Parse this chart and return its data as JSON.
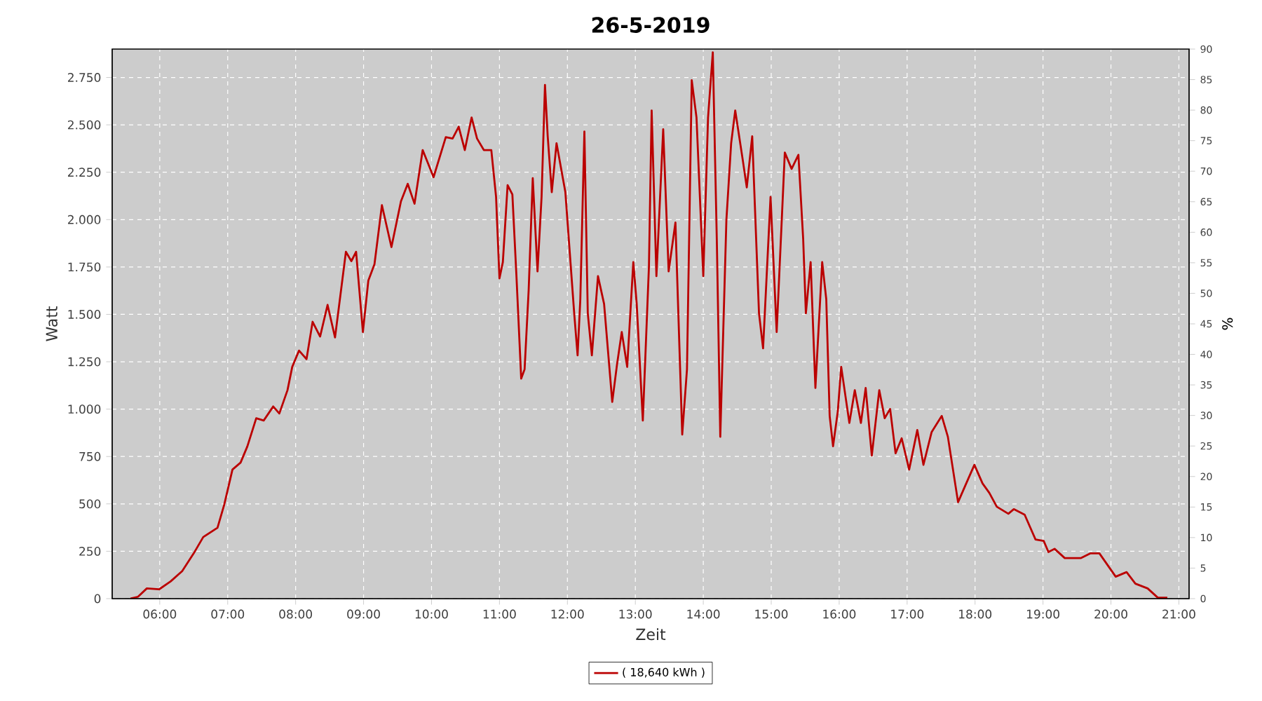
{
  "chart_data": {
    "type": "line",
    "title": "26-5-2019",
    "xlabel": "Zeit",
    "ylabel": "Watt",
    "y2label": "%",
    "xlim": [
      5.3,
      21.15
    ],
    "ylim": [
      0,
      2900
    ],
    "y2lim": [
      0,
      90
    ],
    "xticks": [
      {
        "value": 6,
        "label": "06:00"
      },
      {
        "value": 7,
        "label": "07:00"
      },
      {
        "value": 8,
        "label": "08:00"
      },
      {
        "value": 9,
        "label": "09:00"
      },
      {
        "value": 10,
        "label": "10:00"
      },
      {
        "value": 11,
        "label": "11:00"
      },
      {
        "value": 12,
        "label": "12:00"
      },
      {
        "value": 13,
        "label": "13:00"
      },
      {
        "value": 14,
        "label": "14:00"
      },
      {
        "value": 15,
        "label": "15:00"
      },
      {
        "value": 16,
        "label": "16:00"
      },
      {
        "value": 17,
        "label": "17:00"
      },
      {
        "value": 18,
        "label": "18:00"
      },
      {
        "value": 19,
        "label": "19:00"
      },
      {
        "value": 20,
        "label": "20:00"
      },
      {
        "value": 21,
        "label": "21:00"
      }
    ],
    "yticks": [
      0,
      {
        "value": 250,
        "label": "250"
      },
      {
        "value": 500,
        "label": "500"
      },
      {
        "value": 750,
        "label": "750"
      },
      {
        "value": 1000,
        "label": "1.000"
      },
      {
        "value": 1250,
        "label": "1.250"
      },
      {
        "value": 1500,
        "label": "1.500"
      },
      {
        "value": 1750,
        "label": "1.750"
      },
      {
        "value": 2000,
        "label": "2.000"
      },
      {
        "value": 2250,
        "label": "2.250"
      },
      {
        "value": 2500,
        "label": "2.500"
      },
      {
        "value": 2750,
        "label": "2.750"
      }
    ],
    "y2ticks": [
      0,
      5,
      10,
      15,
      20,
      25,
      30,
      35,
      40,
      45,
      50,
      55,
      60,
      65,
      70,
      75,
      80,
      85,
      90
    ],
    "grid": true,
    "legend": "bottom",
    "series": [
      {
        "name": "( 18,640 kWh )",
        "color": "#bb0000",
        "x": [
          5.57,
          5.68,
          5.81,
          5.99,
          6.16,
          6.33,
          6.5,
          6.64,
          6.85,
          6.95,
          7.07,
          7.19,
          7.29,
          7.42,
          7.53,
          7.67,
          7.76,
          7.88,
          7.95,
          8.05,
          8.16,
          8.25,
          8.36,
          8.47,
          8.58,
          8.74,
          8.82,
          8.89,
          8.99,
          9.07,
          9.16,
          9.27,
          9.41,
          9.55,
          9.65,
          9.75,
          9.87,
          10.03,
          10.21,
          10.31,
          10.4,
          10.49,
          10.59,
          10.67,
          10.77,
          10.88,
          10.95,
          11.0,
          11.05,
          11.12,
          11.19,
          11.25,
          11.32,
          11.37,
          11.43,
          11.49,
          11.56,
          11.62,
          11.67,
          11.71,
          11.77,
          11.84,
          11.97,
          12.1,
          12.15,
          12.19,
          12.25,
          12.3,
          12.36,
          12.45,
          12.54,
          12.66,
          12.73,
          12.8,
          12.88,
          12.97,
          13.02,
          13.11,
          13.2,
          13.24,
          13.31,
          13.41,
          13.49,
          13.59,
          13.69,
          13.76,
          13.83,
          13.9,
          14.0,
          14.07,
          14.14,
          14.2,
          14.25,
          14.34,
          14.41,
          14.47,
          14.58,
          14.64,
          14.72,
          14.82,
          14.88,
          14.99,
          15.08,
          15.2,
          15.3,
          15.4,
          15.47,
          15.51,
          15.58,
          15.65,
          15.75,
          15.81,
          15.86,
          15.91,
          15.98,
          16.03,
          16.1,
          16.15,
          16.23,
          16.32,
          16.39,
          16.48,
          16.59,
          16.67,
          16.75,
          16.83,
          16.92,
          17.03,
          17.15,
          17.24,
          17.36,
          17.51,
          17.6,
          17.75,
          17.87,
          17.99,
          18.11,
          18.21,
          18.32,
          18.49,
          18.57,
          18.73,
          18.89,
          19.01,
          19.08,
          19.17,
          19.32,
          19.56,
          19.7,
          19.83,
          20.07,
          20.23,
          20.36,
          20.54,
          20.69,
          20.83
        ],
        "values": [
          0,
          10,
          54,
          49,
          91,
          145,
          239,
          325,
          374,
          497,
          681,
          718,
          804,
          952,
          940,
          1014,
          977,
          1100,
          1223,
          1309,
          1264,
          1461,
          1383,
          1550,
          1378,
          1830,
          1781,
          1830,
          1407,
          1678,
          1764,
          2076,
          1855,
          2096,
          2189,
          2084,
          2367,
          2224,
          2435,
          2428,
          2490,
          2367,
          2539,
          2428,
          2367,
          2367,
          2120,
          1690,
          1776,
          2182,
          2133,
          1702,
          1161,
          1210,
          1629,
          2219,
          1727,
          2121,
          2711,
          2440,
          2145,
          2403,
          2145,
          1506,
          1284,
          1580,
          2465,
          1506,
          1284,
          1702,
          1555,
          1038,
          1235,
          1407,
          1223,
          1776,
          1555,
          940,
          1752,
          2576,
          1702,
          2477,
          1727,
          1985,
          866,
          1210,
          2736,
          2539,
          1702,
          2539,
          2883,
          1875,
          854,
          1998,
          2403,
          2576,
          2317,
          2170,
          2440,
          1506,
          1321,
          2120,
          1407,
          2354,
          2268,
          2342,
          1899,
          1506,
          1776,
          1112,
          1776,
          1580,
          964,
          804,
          989,
          1223,
          1050,
          927,
          1100,
          927,
          1112,
          755,
          1100,
          952,
          1001,
          767,
          846,
          681,
          890,
          706,
          878,
          964,
          854,
          509,
          608,
          706,
          608,
          558,
          485,
          448,
          472,
          443,
          312,
          305,
          246,
          263,
          214,
          214,
          239,
          239,
          116,
          140,
          79,
          54,
          5,
          5
        ]
      }
    ]
  }
}
